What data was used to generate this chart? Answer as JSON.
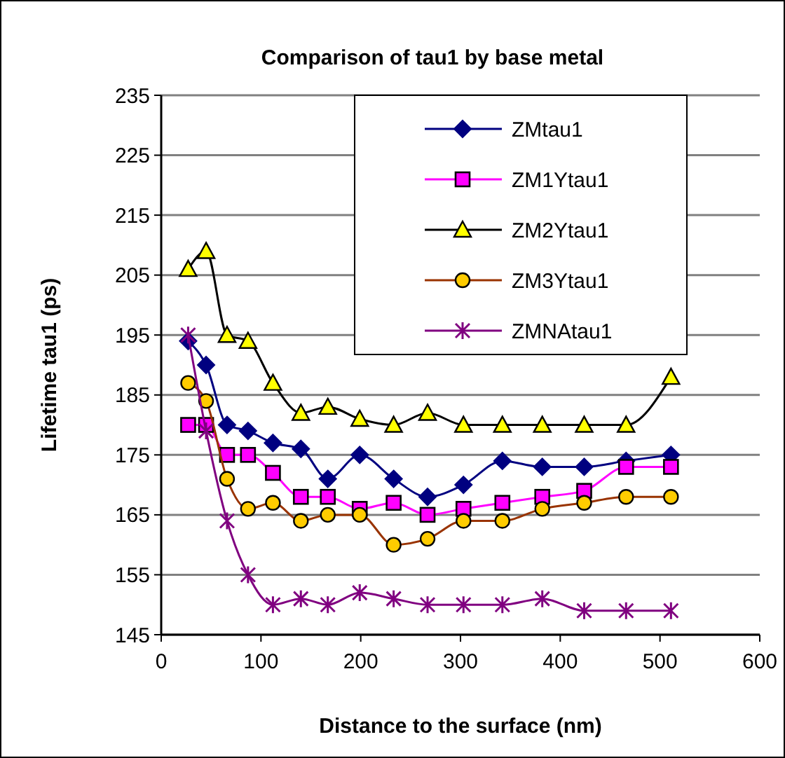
{
  "chart_data": {
    "type": "line",
    "title": "Comparison of tau1 by base metal",
    "xlabel": "Distance to the surface (nm)",
    "ylabel": "Lifetime tau1 (ps)",
    "x": [
      27,
      45,
      66,
      87,
      112,
      140,
      167,
      199,
      233,
      267,
      303,
      342,
      382,
      424,
      466,
      511
    ],
    "xlim": [
      0,
      600
    ],
    "xticks": [
      0,
      100,
      200,
      300,
      400,
      500,
      600
    ],
    "ylim": [
      145,
      235
    ],
    "yticks": [
      145,
      155,
      165,
      175,
      185,
      195,
      205,
      215,
      225,
      235
    ],
    "grid": "y",
    "legend": "top right",
    "line_style": "solid",
    "series": [
      {
        "name": "ZMtau1",
        "color": "#000080",
        "marker": "diamond",
        "values": [
          194,
          190,
          180,
          179,
          177,
          176,
          171,
          175,
          171,
          168,
          170,
          174,
          173,
          173,
          174,
          175
        ]
      },
      {
        "name": "ZM1Ytau1",
        "color": "#ff00ff",
        "marker": "square",
        "values": [
          180,
          180,
          175,
          175,
          172,
          168,
          168,
          166,
          167,
          165,
          166,
          167,
          168,
          169,
          173,
          173
        ]
      },
      {
        "name": "ZM2Ytau1",
        "color": "#000000",
        "marker": "triangle",
        "values": [
          206,
          209,
          195,
          194,
          187,
          182,
          183,
          181,
          180,
          182,
          180,
          180,
          180,
          180,
          180,
          188
        ]
      },
      {
        "name": "ZM3Ytau1",
        "color": "#993300",
        "marker": "circle",
        "values": [
          187,
          184,
          171,
          166,
          167,
          164,
          165,
          165,
          160,
          161,
          164,
          164,
          166,
          167,
          168,
          168
        ]
      },
      {
        "name": "ZMNAtau1",
        "color": "#800080",
        "marker": "cross",
        "values": [
          195,
          179,
          164,
          155,
          150,
          151,
          150,
          152,
          151,
          150,
          150,
          150,
          151,
          149,
          149,
          149
        ]
      }
    ]
  }
}
